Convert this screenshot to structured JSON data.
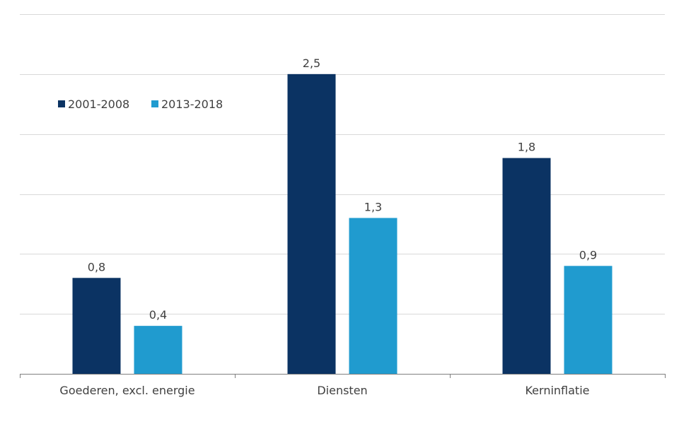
{
  "chart_data": {
    "type": "bar",
    "categories": [
      "Goederen, excl. energie",
      "Diensten",
      "Kerninflatie"
    ],
    "series": [
      {
        "name": "2001-2008",
        "color": "#0b3363",
        "values": [
          0.8,
          2.5,
          1.8
        ],
        "labels": [
          "0,8",
          "2,5",
          "1,8"
        ]
      },
      {
        "name": "2013-2018",
        "color": "#209bcf",
        "values": [
          0.4,
          1.3,
          0.9
        ],
        "labels": [
          "0,4",
          "1,3",
          "0,9"
        ]
      }
    ],
    "ylim": [
      0,
      3.0
    ],
    "yticks": [
      0,
      0.5,
      1.0,
      1.5,
      2.0,
      2.5,
      3.0
    ],
    "y_tick_labels_shown": false,
    "grid": true,
    "legend_position": "top-left"
  }
}
